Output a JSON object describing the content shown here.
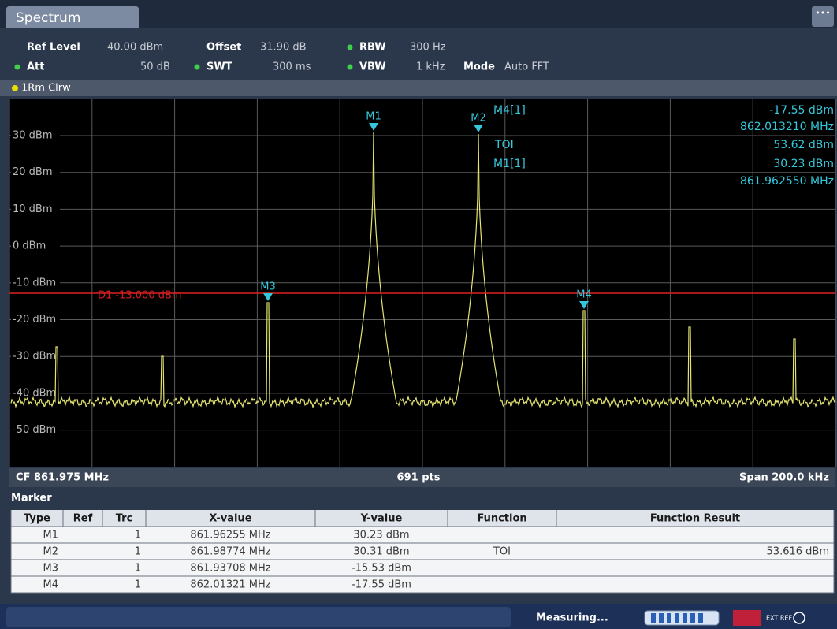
{
  "tab": "Spectrum",
  "settings": {
    "ref_level_label": "Ref Level",
    "ref_level": "40.00 dBm",
    "offset_label": "Offset",
    "offset": "31.90 dB",
    "rbw_label": "RBW",
    "rbw": "300 Hz",
    "att_label": "Att",
    "att": "50 dB",
    "swt_label": "SWT",
    "swt": "300 ms",
    "vbw_label": "VBW",
    "vbw": "1 kHz",
    "mode_label": "Mode",
    "mode": "Auto FFT"
  },
  "trace_label": "1Rm Clrw",
  "y_axis_labels": [
    "30 dBm",
    "20 dBm",
    "10 dBm",
    "0 dBm",
    "-10 dBm",
    "-20 dBm",
    "-30 dBm",
    "-40 dBm",
    "-50 dBm"
  ],
  "display_line": "D1 -13.000 dBm",
  "markers": [
    "M1",
    "M2",
    "M3",
    "M4"
  ],
  "marker_info": {
    "m4_name": "M4[1]",
    "m4_level": "-17.55 dBm",
    "m4_freq": "862.013210 MHz",
    "toi_name": "TOI",
    "toi_value": "53.62 dBm",
    "m1_name": "M1[1]",
    "m1_level": "30.23 dBm",
    "m1_freq": "861.962550 MHz"
  },
  "footer": {
    "center": "CF 861.975 MHz",
    "points": "691 pts",
    "span": "Span 200.0 kHz"
  },
  "marker_table": {
    "title": "Marker",
    "columns": [
      "Type",
      "Ref",
      "Trc",
      "X-value",
      "Y-value",
      "Function",
      "Function Result"
    ],
    "rows": [
      {
        "type": "M1",
        "trc": "1",
        "x": "861.96255 MHz",
        "y": "30.23 dBm"
      },
      {
        "type": "M2",
        "trc": "1",
        "x": "861.98774 MHz",
        "y": "30.31 dBm",
        "function": "TOI",
        "result": "53.616 dBm"
      },
      {
        "type": "M3",
        "trc": "1",
        "x": "861.93708 MHz",
        "y": "-15.53 dBm"
      },
      {
        "type": "M4",
        "trc": "1",
        "x": "862.01321 MHz",
        "y": "-17.55 dBm"
      }
    ]
  },
  "status": {
    "text": "Measuring...",
    "ref_icon": "EXT REF"
  }
}
